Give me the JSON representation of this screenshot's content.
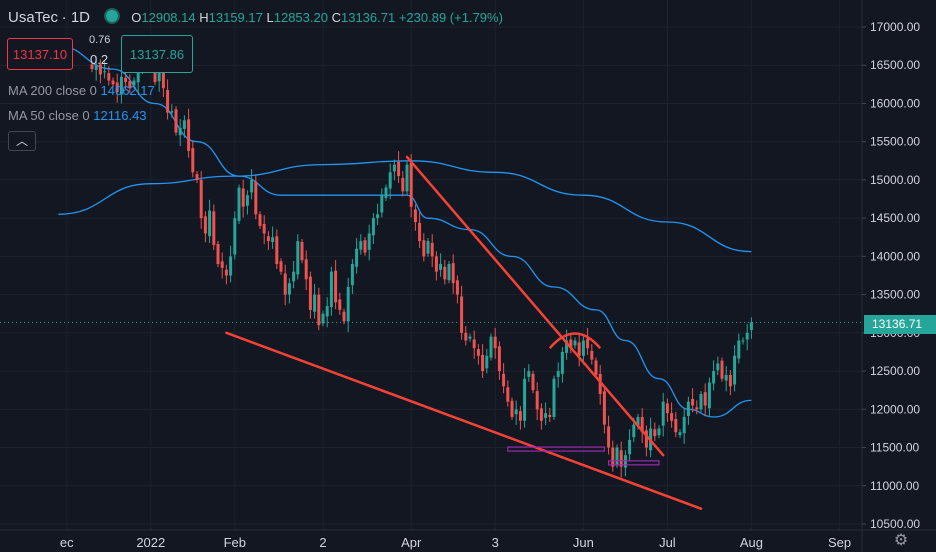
{
  "header": {
    "symbol": "UsaTec",
    "interval": "1D",
    "open_label": "O",
    "open": "12908.14",
    "high_label": "H",
    "high": "13159.17",
    "low_label": "L",
    "low": "12853.20",
    "close_label": "C",
    "close": "13136.71",
    "change": "+230.89 (+1.79%)"
  },
  "trade": {
    "sell_price": "13137.10",
    "spread_top": "0.76",
    "spread": "0.2",
    "buy_price": "13137.86"
  },
  "indicators": [
    {
      "label": "MA 200 close 0",
      "value": "14062.17",
      "color": "#2196f3"
    },
    {
      "label": "MA 50 close 0",
      "value": "12116.43",
      "color": "#2196f3"
    }
  ],
  "collapse_icon": "chevron-up-icon",
  "settings_icon": "gear-icon",
  "last_price": "13136.71",
  "colors": {
    "up": "#26a69a",
    "down": "#ef5350",
    "trendline": "#f44336",
    "support": "#9c27b0",
    "ma": "#2196f3",
    "bg": "#131722"
  },
  "chart_data": {
    "type": "candlestick",
    "symbol": "UsaTec",
    "interval": "1D",
    "y_range": [
      10500,
      17300
    ],
    "y_ticks": [
      "17000.00",
      "16500.00",
      "16000.00",
      "15500.00",
      "15000.00",
      "14500.00",
      "14000.00",
      "13500.00",
      "13000.00",
      "12500.00",
      "12000.00",
      "11500.00",
      "11000.00",
      "10500.00"
    ],
    "x_ticks": [
      {
        "label": "ec",
        "index": -6
      },
      {
        "label": "2022",
        "index": 14
      },
      {
        "label": "Feb",
        "index": 34
      },
      {
        "label": "2",
        "index": 55
      },
      {
        "label": "Apr",
        "index": 76
      },
      {
        "label": "3",
        "index": 96
      },
      {
        "label": "Jun",
        "index": 117
      },
      {
        "label": "Jul",
        "index": 137
      },
      {
        "label": "Aug",
        "index": 157
      },
      {
        "label": "Sep",
        "index": 178
      }
    ],
    "last_close": 13136.71,
    "closes": [
      16450,
      16500,
      16380,
      16420,
      16300,
      16250,
      16150,
      16350,
      16280,
      16200,
      16300,
      16500,
      16650,
      16600,
      16600,
      16280,
      16400,
      16200,
      15880,
      15900,
      15620,
      15680,
      15780,
      15380,
      15100,
      15000,
      14500,
      14300,
      14600,
      14150,
      13900,
      13850,
      13750,
      14000,
      14500,
      14900,
      14650,
      14800,
      15000,
      14550,
      14400,
      14300,
      14200,
      14250,
      13900,
      13800,
      13500,
      13650,
      13800,
      14200,
      13950,
      13700,
      13300,
      13500,
      13100,
      13250,
      13350,
      13800,
      13400,
      13300,
      13150,
      13600,
      13900,
      14100,
      14200,
      14050,
      14300,
      14500,
      14550,
      14800,
      14900,
      15100,
      15200,
      15050,
      14850,
      15200,
      14650,
      14450,
      14200,
      14000,
      14200,
      14000,
      13800,
      13900,
      13700,
      13900,
      13650,
      13500,
      13000,
      12900,
      12950,
      12800,
      12700,
      12500,
      12700,
      12950,
      12800,
      12500,
      12300,
      12100,
      11900,
      12000,
      11850,
      12400,
      12500,
      12250,
      12000,
      11850,
      11950,
      11900,
      12400,
      12500,
      12750,
      12900,
      12800,
      12900,
      12700,
      12900,
      12800,
      12650,
      12450,
      12200,
      11800,
      11500,
      11250,
      11500,
      11250,
      11400,
      11600,
      11800,
      11900,
      11700,
      11500,
      11750,
      11650,
      11750,
      12100,
      11950,
      11850,
      11700,
      11700,
      11900,
      12100,
      12050,
      12000,
      12200,
      12050,
      12350,
      12500,
      12600,
      12400,
      12450,
      12300,
      12700,
      12900,
      12900,
      13000,
      13137
    ],
    "ma200_anchors": [
      [
        -8,
        14550
      ],
      [
        14,
        14950
      ],
      [
        34,
        15050
      ],
      [
        55,
        15200
      ],
      [
        76,
        15250
      ],
      [
        96,
        15100
      ],
      [
        117,
        14800
      ],
      [
        137,
        14450
      ],
      [
        157,
        14062
      ]
    ],
    "ma50_anchors": [
      [
        -8,
        16750
      ],
      [
        5,
        16450
      ],
      [
        15,
        16000
      ],
      [
        25,
        15500
      ],
      [
        35,
        15050
      ],
      [
        45,
        14800
      ],
      [
        55,
        14800
      ],
      [
        65,
        14800
      ],
      [
        75,
        14800
      ],
      [
        80,
        14500
      ],
      [
        90,
        14350
      ],
      [
        100,
        14000
      ],
      [
        110,
        13600
      ],
      [
        120,
        13300
      ],
      [
        127,
        12900
      ],
      [
        135,
        12400
      ],
      [
        142,
        12000
      ],
      [
        148,
        11900
      ],
      [
        157,
        12116
      ]
    ],
    "trendlines": [
      {
        "from": [
          75,
          15300
        ],
        "to": [
          136,
          11400
        ]
      },
      {
        "from": [
          32,
          13000
        ],
        "to": [
          145,
          10700
        ]
      }
    ],
    "support_zones": [
      {
        "from": [
          99,
          11480
        ],
        "to": [
          122,
          11480
        ]
      },
      {
        "from": [
          123,
          11300
        ],
        "to": [
          135,
          11300
        ]
      }
    ]
  }
}
